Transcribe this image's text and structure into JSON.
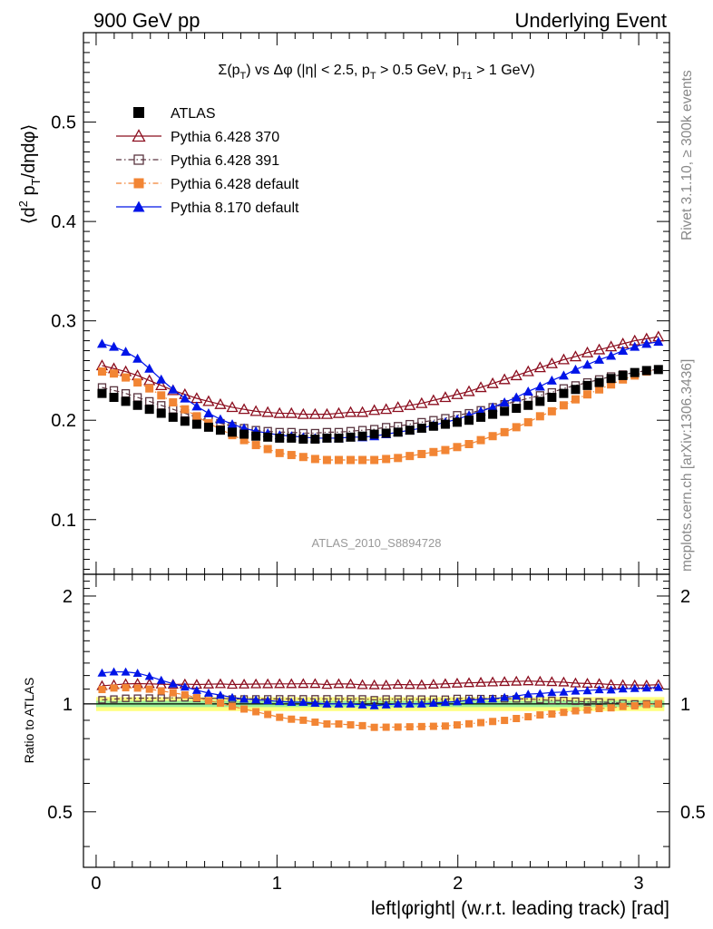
{
  "header": {
    "left": "900 GeV pp",
    "right": "Underlying Event"
  },
  "side_text": {
    "rivet": "Rivet 3.1.10, ≥ 300k events",
    "mcplots": "mcplots.cern.ch [arXiv:1306.3436]"
  },
  "chart_data": {
    "type": "scatter",
    "title": "Σ(p_T) vs Δφ (|η| < 2.5, p_T > 0.5 GeV, p_T1 > 1 GeV)",
    "title_parts": {
      "a": "Σ(p",
      "a_sub": "T",
      "b": ") vs Δφ (|η| < 2.5, p",
      "b_sub": "T",
      "c": " > 0.5 GeV, p",
      "c_sub": "T1",
      "d": " > 1 GeV)"
    },
    "watermark": "ATLAS_2010_S8894728",
    "ylabel_parts": {
      "a": "⟨d",
      "a_sup": "2",
      "b": " p",
      "b_sub": "T",
      "c": "/dηdφ⟩"
    },
    "ratio_ylabel": "Ratio to ATLAS",
    "xlabel": "left|φright| (w.r.t. leading track) [rad]",
    "xlim": [
      -0.07,
      3.17
    ],
    "ylim": [
      0.045,
      0.59
    ],
    "ratio_ylim": [
      0.35,
      2.3
    ],
    "x_ticks": [
      0,
      1,
      2,
      3
    ],
    "y_ticks": [
      0.1,
      0.2,
      0.3,
      0.4,
      0.5
    ],
    "ratio_ticks": [
      0.5,
      1,
      2
    ],
    "legend_position": "top-left",
    "x": [
      0.0327,
      0.0982,
      0.1636,
      0.2291,
      0.2945,
      0.36,
      0.4254,
      0.4909,
      0.5563,
      0.6218,
      0.6872,
      0.7527,
      0.8181,
      0.8836,
      0.949,
      1.0145,
      1.0799,
      1.1454,
      1.2108,
      1.2763,
      1.3417,
      1.4072,
      1.4726,
      1.5381,
      1.6035,
      1.669,
      1.7344,
      1.7999,
      1.8653,
      1.9308,
      1.9962,
      2.0617,
      2.1271,
      2.1926,
      2.258,
      2.3235,
      2.3889,
      2.4544,
      2.5198,
      2.5853,
      2.6507,
      2.7162,
      2.7816,
      2.8471,
      2.9125,
      2.978,
      3.0434,
      3.1089
    ],
    "series": [
      {
        "name": "ATLAS",
        "color": "#000000",
        "marker": "square-filled",
        "line": "none",
        "values": [
          0.227,
          0.223,
          0.219,
          0.215,
          0.211,
          0.207,
          0.203,
          0.199,
          0.196,
          0.193,
          0.19,
          0.188,
          0.186,
          0.184,
          0.183,
          0.182,
          0.182,
          0.181,
          0.181,
          0.182,
          0.182,
          0.183,
          0.184,
          0.186,
          0.187,
          0.188,
          0.19,
          0.192,
          0.194,
          0.196,
          0.198,
          0.2,
          0.203,
          0.206,
          0.209,
          0.212,
          0.215,
          0.219,
          0.223,
          0.227,
          0.231,
          0.235,
          0.238,
          0.242,
          0.245,
          0.248,
          0.25,
          0.251
        ]
      },
      {
        "name": "Pythia 6.428 370",
        "color": "#8b0d1e",
        "marker": "triangle-open",
        "line": "solid",
        "values": [
          0.255,
          0.252,
          0.249,
          0.245,
          0.24,
          0.235,
          0.23,
          0.226,
          0.222,
          0.219,
          0.216,
          0.213,
          0.211,
          0.209,
          0.208,
          0.207,
          0.207,
          0.206,
          0.206,
          0.206,
          0.207,
          0.208,
          0.208,
          0.21,
          0.211,
          0.213,
          0.215,
          0.217,
          0.22,
          0.223,
          0.226,
          0.229,
          0.233,
          0.237,
          0.241,
          0.245,
          0.249,
          0.253,
          0.257,
          0.261,
          0.264,
          0.268,
          0.271,
          0.274,
          0.277,
          0.28,
          0.282,
          0.284
        ]
      },
      {
        "name": "Pythia 6.428 391",
        "color": "#5a3540",
        "marker": "square-open",
        "line": "dashdot",
        "values": [
          0.233,
          0.23,
          0.227,
          0.223,
          0.219,
          0.215,
          0.211,
          0.207,
          0.203,
          0.2,
          0.197,
          0.194,
          0.192,
          0.19,
          0.189,
          0.188,
          0.188,
          0.187,
          0.187,
          0.188,
          0.188,
          0.189,
          0.19,
          0.191,
          0.193,
          0.194,
          0.196,
          0.198,
          0.2,
          0.202,
          0.205,
          0.207,
          0.21,
          0.213,
          0.216,
          0.219,
          0.222,
          0.225,
          0.228,
          0.232,
          0.235,
          0.238,
          0.241,
          0.244,
          0.246,
          0.248,
          0.25,
          0.251
        ]
      },
      {
        "name": "Pythia 6.428 default",
        "color": "#f28534",
        "marker": "square-filled",
        "line": "dashdot",
        "values": [
          0.249,
          0.247,
          0.243,
          0.238,
          0.232,
          0.225,
          0.218,
          0.211,
          0.204,
          0.197,
          0.191,
          0.185,
          0.18,
          0.175,
          0.171,
          0.167,
          0.165,
          0.163,
          0.161,
          0.16,
          0.16,
          0.16,
          0.16,
          0.16,
          0.161,
          0.162,
          0.164,
          0.166,
          0.168,
          0.17,
          0.173,
          0.176,
          0.18,
          0.184,
          0.188,
          0.193,
          0.198,
          0.204,
          0.209,
          0.215,
          0.221,
          0.226,
          0.231,
          0.236,
          0.241,
          0.245,
          0.249,
          0.251
        ]
      },
      {
        "name": "Pythia 8.170 default",
        "color": "#0014e8",
        "marker": "triangle-filled",
        "line": "solid",
        "values": [
          0.277,
          0.274,
          0.269,
          0.262,
          0.252,
          0.241,
          0.231,
          0.222,
          0.214,
          0.207,
          0.201,
          0.196,
          0.192,
          0.189,
          0.187,
          0.185,
          0.184,
          0.183,
          0.182,
          0.182,
          0.182,
          0.183,
          0.183,
          0.184,
          0.186,
          0.188,
          0.19,
          0.192,
          0.195,
          0.198,
          0.201,
          0.205,
          0.209,
          0.213,
          0.218,
          0.223,
          0.229,
          0.234,
          0.24,
          0.245,
          0.251,
          0.256,
          0.261,
          0.265,
          0.27,
          0.274,
          0.277,
          0.279
        ]
      }
    ],
    "band_colors": {
      "stat": "#ffff80",
      "total": "#99ee99"
    }
  }
}
